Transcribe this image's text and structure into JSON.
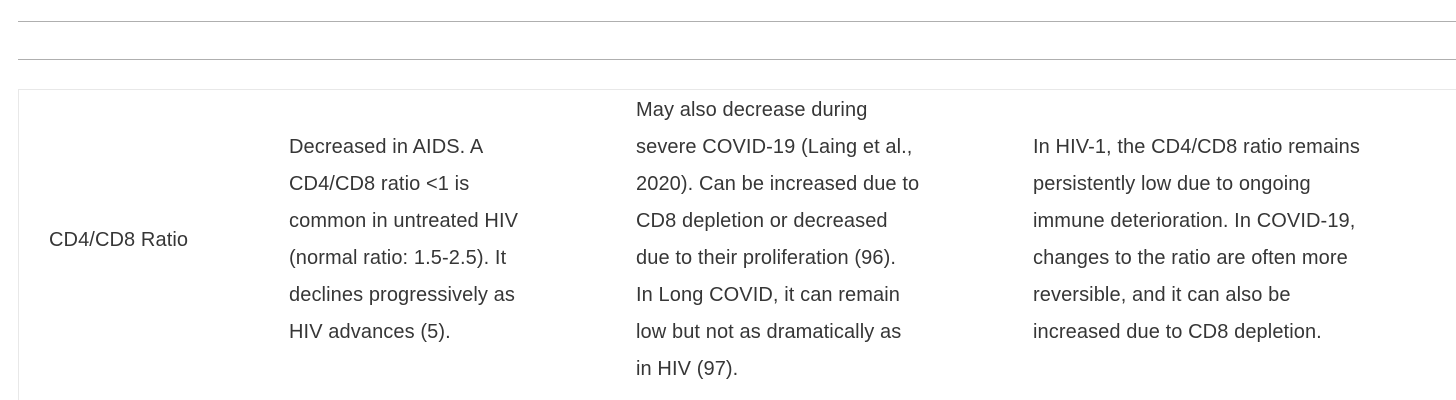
{
  "theme": {
    "background_color": "#ffffff",
    "separator_color": "#afafaf",
    "table_border_color": "#e8e8e8",
    "text_color": "#363636"
  },
  "table": {
    "row": {
      "cells": [
        "CD4/CD8 Ratio",
        "Decreased in AIDS. A\nCD4/CD8 ratio <1 is\ncommon in untreated HIV\n(normal ratio: 1.5-2.5). It\ndeclines progressively as\nHIV advances (5).",
        "May also decrease during\nsevere COVID-19 (Laing et al.,\n2020). Can be increased due to\nCD8 depletion or decreased\ndue to their proliferation (96).\nIn Long COVID, it can remain\nlow but not as dramatically as\nin HIV (97).",
        "In HIV-1, the CD4/CD8 ratio remains\npersistently low due to ongoing\nimmune deterioration. In COVID-19,\nchanges to the ratio are often more\nreversible, and it can also be\nincreased due to CD8 depletion."
      ]
    }
  }
}
